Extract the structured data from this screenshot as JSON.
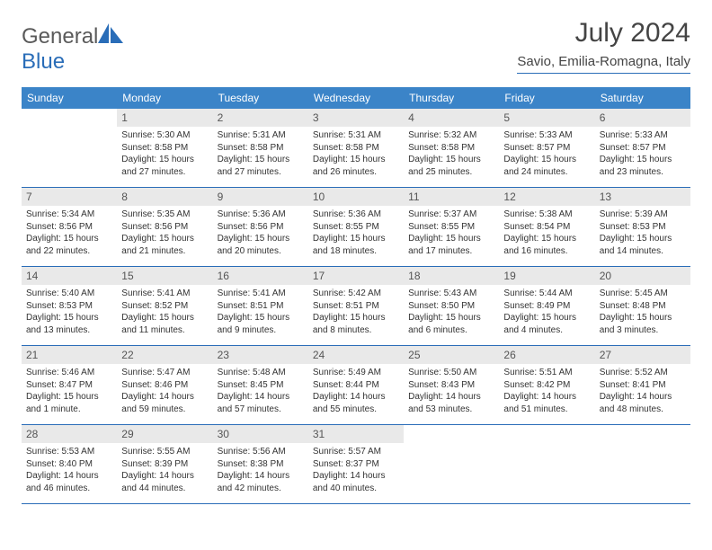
{
  "logo": {
    "text_a": "General",
    "text_b": "Blue"
  },
  "title": "July 2024",
  "location": "Savio, Emilia-Romagna, Italy",
  "colors": {
    "header_bg": "#3b84c8",
    "header_fg": "#ffffff",
    "rule": "#2a6db8",
    "daynum_bg": "#e9e9e9",
    "text": "#333333"
  },
  "day_headers": [
    "Sunday",
    "Monday",
    "Tuesday",
    "Wednesday",
    "Thursday",
    "Friday",
    "Saturday"
  ],
  "weeks": [
    [
      {
        "blank": true
      },
      {
        "n": "1",
        "sr": "5:30 AM",
        "ss": "8:58 PM",
        "dl": "15 hours and 27 minutes."
      },
      {
        "n": "2",
        "sr": "5:31 AM",
        "ss": "8:58 PM",
        "dl": "15 hours and 27 minutes."
      },
      {
        "n": "3",
        "sr": "5:31 AM",
        "ss": "8:58 PM",
        "dl": "15 hours and 26 minutes."
      },
      {
        "n": "4",
        "sr": "5:32 AM",
        "ss": "8:58 PM",
        "dl": "15 hours and 25 minutes."
      },
      {
        "n": "5",
        "sr": "5:33 AM",
        "ss": "8:57 PM",
        "dl": "15 hours and 24 minutes."
      },
      {
        "n": "6",
        "sr": "5:33 AM",
        "ss": "8:57 PM",
        "dl": "15 hours and 23 minutes."
      }
    ],
    [
      {
        "n": "7",
        "sr": "5:34 AM",
        "ss": "8:56 PM",
        "dl": "15 hours and 22 minutes."
      },
      {
        "n": "8",
        "sr": "5:35 AM",
        "ss": "8:56 PM",
        "dl": "15 hours and 21 minutes."
      },
      {
        "n": "9",
        "sr": "5:36 AM",
        "ss": "8:56 PM",
        "dl": "15 hours and 20 minutes."
      },
      {
        "n": "10",
        "sr": "5:36 AM",
        "ss": "8:55 PM",
        "dl": "15 hours and 18 minutes."
      },
      {
        "n": "11",
        "sr": "5:37 AM",
        "ss": "8:55 PM",
        "dl": "15 hours and 17 minutes."
      },
      {
        "n": "12",
        "sr": "5:38 AM",
        "ss": "8:54 PM",
        "dl": "15 hours and 16 minutes."
      },
      {
        "n": "13",
        "sr": "5:39 AM",
        "ss": "8:53 PM",
        "dl": "15 hours and 14 minutes."
      }
    ],
    [
      {
        "n": "14",
        "sr": "5:40 AM",
        "ss": "8:53 PM",
        "dl": "15 hours and 13 minutes."
      },
      {
        "n": "15",
        "sr": "5:41 AM",
        "ss": "8:52 PM",
        "dl": "15 hours and 11 minutes."
      },
      {
        "n": "16",
        "sr": "5:41 AM",
        "ss": "8:51 PM",
        "dl": "15 hours and 9 minutes."
      },
      {
        "n": "17",
        "sr": "5:42 AM",
        "ss": "8:51 PM",
        "dl": "15 hours and 8 minutes."
      },
      {
        "n": "18",
        "sr": "5:43 AM",
        "ss": "8:50 PM",
        "dl": "15 hours and 6 minutes."
      },
      {
        "n": "19",
        "sr": "5:44 AM",
        "ss": "8:49 PM",
        "dl": "15 hours and 4 minutes."
      },
      {
        "n": "20",
        "sr": "5:45 AM",
        "ss": "8:48 PM",
        "dl": "15 hours and 3 minutes."
      }
    ],
    [
      {
        "n": "21",
        "sr": "5:46 AM",
        "ss": "8:47 PM",
        "dl": "15 hours and 1 minute."
      },
      {
        "n": "22",
        "sr": "5:47 AM",
        "ss": "8:46 PM",
        "dl": "14 hours and 59 minutes."
      },
      {
        "n": "23",
        "sr": "5:48 AM",
        "ss": "8:45 PM",
        "dl": "14 hours and 57 minutes."
      },
      {
        "n": "24",
        "sr": "5:49 AM",
        "ss": "8:44 PM",
        "dl": "14 hours and 55 minutes."
      },
      {
        "n": "25",
        "sr": "5:50 AM",
        "ss": "8:43 PM",
        "dl": "14 hours and 53 minutes."
      },
      {
        "n": "26",
        "sr": "5:51 AM",
        "ss": "8:42 PM",
        "dl": "14 hours and 51 minutes."
      },
      {
        "n": "27",
        "sr": "5:52 AM",
        "ss": "8:41 PM",
        "dl": "14 hours and 48 minutes."
      }
    ],
    [
      {
        "n": "28",
        "sr": "5:53 AM",
        "ss": "8:40 PM",
        "dl": "14 hours and 46 minutes."
      },
      {
        "n": "29",
        "sr": "5:55 AM",
        "ss": "8:39 PM",
        "dl": "14 hours and 44 minutes."
      },
      {
        "n": "30",
        "sr": "5:56 AM",
        "ss": "8:38 PM",
        "dl": "14 hours and 42 minutes."
      },
      {
        "n": "31",
        "sr": "5:57 AM",
        "ss": "8:37 PM",
        "dl": "14 hours and 40 minutes."
      },
      {
        "blank": true
      },
      {
        "blank": true
      },
      {
        "blank": true
      }
    ]
  ],
  "labels": {
    "sunrise": "Sunrise:",
    "sunset": "Sunset:",
    "daylight": "Daylight:"
  }
}
